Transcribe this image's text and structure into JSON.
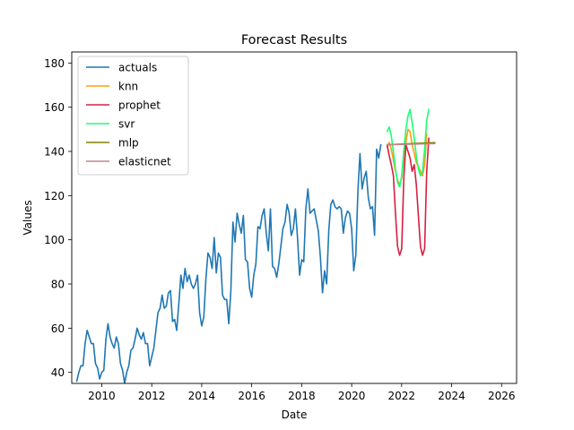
{
  "chart_data": {
    "type": "line",
    "title": "Forecast Results",
    "xlabel": "Date",
    "ylabel": "Values",
    "xlim": [
      2008.8,
      2026.6
    ],
    "ylim": [
      35,
      185
    ],
    "xticks": [
      2010,
      2012,
      2014,
      2016,
      2018,
      2020,
      2022,
      2024,
      2026
    ],
    "yticks": [
      40,
      60,
      80,
      100,
      120,
      140,
      160,
      180
    ],
    "legend_position": "top-left",
    "grid": false,
    "series": [
      {
        "name": "actuals",
        "color": "#1f77b4",
        "x_start": 2009.0,
        "x_step": 0.0833333,
        "values": [
          36,
          40,
          43,
          43,
          53,
          59,
          56,
          53,
          53,
          44,
          42,
          37,
          40,
          41,
          55,
          62,
          56,
          53,
          51,
          56,
          53,
          44,
          41,
          35,
          40,
          43,
          50,
          51,
          55,
          60,
          57,
          55,
          58,
          53,
          53,
          43,
          47,
          51,
          59,
          67,
          69,
          75,
          69,
          70,
          76,
          77,
          63,
          64,
          59,
          71,
          84,
          78,
          87,
          81,
          84,
          80,
          78,
          80,
          84,
          67,
          61,
          65,
          82,
          94,
          92,
          87,
          101,
          85,
          94,
          92,
          75,
          73,
          73,
          62,
          77,
          108,
          99,
          112,
          107,
          103,
          111,
          91,
          90,
          78,
          74,
          84,
          89,
          106,
          105,
          111,
          114,
          103,
          95,
          114,
          88,
          87,
          83,
          89,
          97,
          105,
          108,
          116,
          112,
          102,
          105,
          114,
          101,
          84,
          91,
          90,
          114,
          123,
          112,
          113,
          114,
          109,
          104,
          92,
          76,
          86,
          80,
          104,
          116,
          118,
          115,
          114,
          115,
          114,
          103,
          110,
          113,
          112,
          105,
          86,
          93,
          122,
          139,
          123,
          128,
          131,
          119,
          114,
          115,
          102,
          141,
          137,
          143
        ]
      },
      {
        "name": "knn",
        "color": "#ff9f0f",
        "x_start": 2021.42,
        "x_step": 0.0833333,
        "values": [
          142,
          144,
          141,
          136,
          131,
          127,
          125,
          128,
          137,
          144,
          150,
          149,
          143,
          139,
          135,
          133,
          131,
          129,
          134,
          148
        ]
      },
      {
        "name": "prophet",
        "color": "#d62041",
        "x_start": 2021.42,
        "x_step": 0.0833333,
        "values": [
          143,
          138,
          134,
          129,
          112,
          97,
          93,
          96,
          128,
          143,
          140,
          137,
          131,
          134,
          125,
          111,
          97,
          93,
          96,
          131,
          146
        ]
      },
      {
        "name": "svr",
        "color": "#1aff73",
        "x_start": 2021.42,
        "x_step": 0.0833333,
        "values": [
          149,
          151,
          147,
          140,
          132,
          126,
          124,
          129,
          140,
          150,
          156,
          159,
          153,
          146,
          138,
          132,
          129,
          131,
          141,
          154,
          159
        ]
      },
      {
        "name": "mlp",
        "color": "#808000",
        "x": [
          2021.42,
          2023.33
        ],
        "values": [
          143,
          144
        ]
      },
      {
        "name": "elasticnet",
        "color": "#c48690",
        "x": [
          2021.42,
          2023.33
        ],
        "values": [
          143,
          143.5
        ]
      }
    ]
  }
}
